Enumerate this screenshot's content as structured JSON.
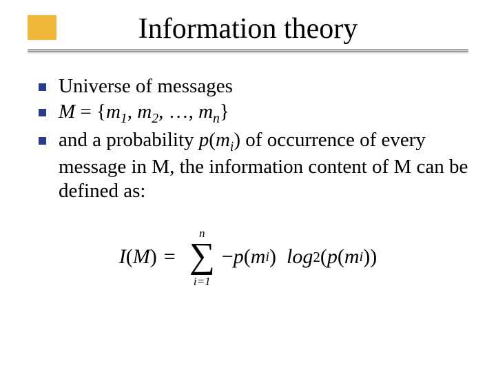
{
  "slide": {
    "title": "Information theory",
    "accent_color": "#f0b838",
    "bullet_color": "#2a3b8f",
    "text_color": "#000000",
    "background_color": "#ffffff",
    "title_fontsize": 42,
    "body_fontsize": 29,
    "bullets": {
      "b1": "Universe of messages",
      "b2_pre": "M",
      "b2_eq": " = {",
      "b2_m": "m",
      "b2_s1": "1",
      "b2_c": ", ",
      "b2_s2": "2",
      "b2_dots": ", …, ",
      "b2_sn": "n",
      "b2_close": "}",
      "b3_a": "and a probability ",
      "b3_p": "p",
      "b3_po": "(",
      "b3_m": "m",
      "b3_si": "i",
      "b3_pc": ")",
      "b3_b": " of occurrence of every message in M, the information content of M can be defined as:"
    },
    "formula": {
      "I": "I",
      "open": "(",
      "M": "M",
      "close": ")",
      "eq": "=",
      "sum_top": "n",
      "sum_sym": "∑",
      "sum_bot": "i=1",
      "neg": "−",
      "p": "p",
      "m": "m",
      "i": "i",
      "log": "log",
      "log_base": "2"
    }
  }
}
